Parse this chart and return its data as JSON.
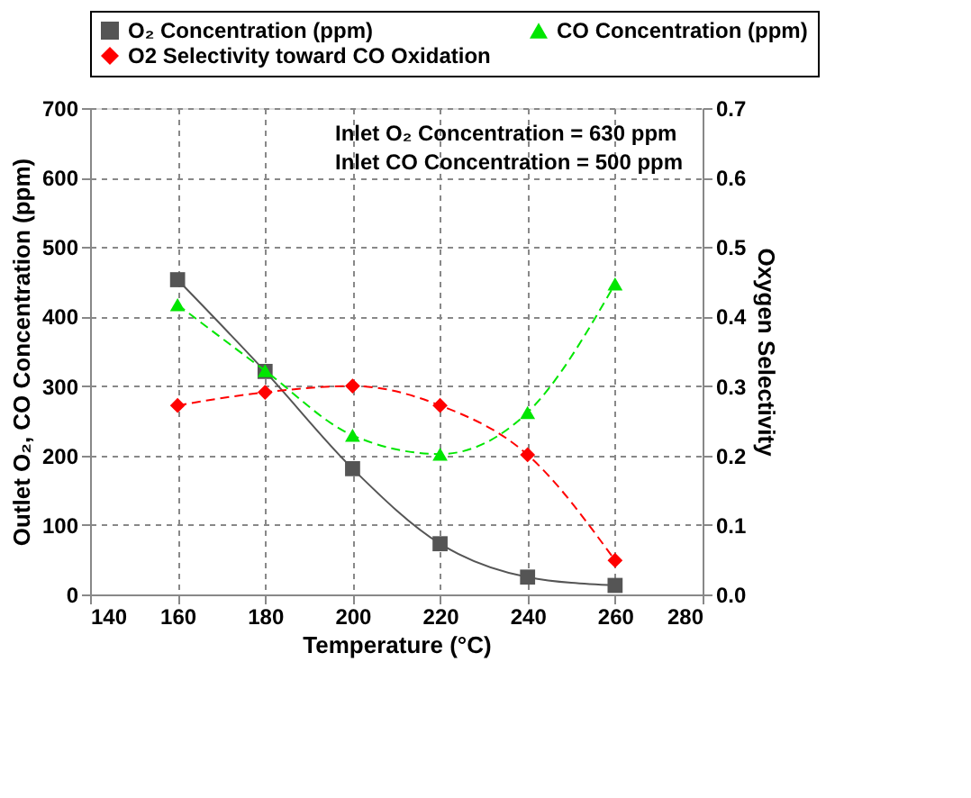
{
  "chart_data": {
    "type": "line",
    "xlabel": "Temperature (°C)",
    "ylabel": "Outlet O₂, CO Concentration (ppm)",
    "y2label": "Oxygen Selectivity",
    "x": [
      160,
      180,
      200,
      220,
      240,
      260
    ],
    "series": [
      {
        "name": "O₂ Concentration (ppm)",
        "color": "#555555",
        "marker": "square",
        "line_style": "solid",
        "values": [
          453,
          321,
          181,
          73,
          25,
          13
        ]
      },
      {
        "name": "CO Concentration (ppm)",
        "color": "#00e600",
        "marker": "triangle",
        "line_style": "dashed",
        "values": [
          417,
          322,
          229,
          202,
          262,
          447
        ]
      },
      {
        "name": "O2 Selectivity toward CO Oxidation",
        "color": "#ff0000",
        "marker": "diamond",
        "line_style": "dashed",
        "axis": "y2",
        "values": [
          0.272,
          0.291,
          0.3,
          0.272,
          0.201,
          0.049
        ]
      }
    ],
    "xlim": [
      140,
      280
    ],
    "xticks": [
      140,
      160,
      180,
      200,
      220,
      240,
      260,
      280
    ],
    "ylim": [
      0,
      700
    ],
    "yticks": [
      0,
      100,
      200,
      300,
      400,
      500,
      600,
      700
    ],
    "y2lim": [
      0,
      0.7
    ],
    "y2ticks": [
      {
        "value": 0,
        "label": "0.0"
      },
      0.1,
      0.2,
      0.3,
      0.4,
      0.5,
      0.6,
      0.7
    ],
    "annotations": [
      "Inlet O₂ Concentration = 630 ppm",
      "Inlet CO Concentration = 500 ppm"
    ],
    "grid": true,
    "legend": "top"
  }
}
